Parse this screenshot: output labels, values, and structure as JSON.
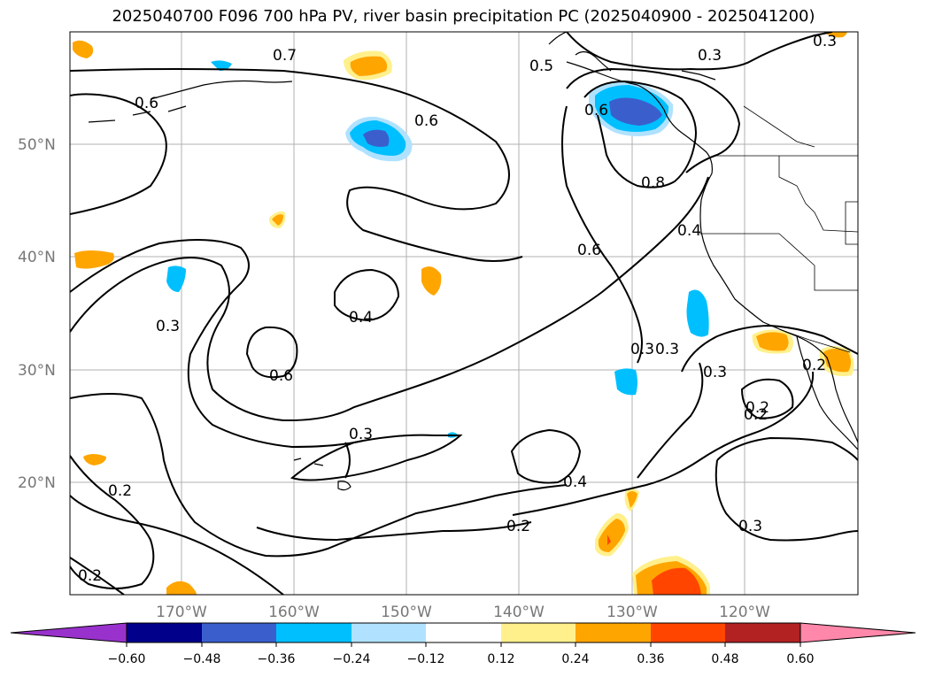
{
  "title": "2025040700 F096 700 hPa PV, river basin precipitation PC (2025040900 - 2025041200)",
  "map": {
    "lat_labels": [
      "50°N",
      "40°N",
      "30°N",
      "20°N"
    ],
    "lon_labels": [
      "170°W",
      "160°W",
      "150°W",
      "140°W",
      "130°W",
      "120°W"
    ],
    "contour_labels": [
      "0.7",
      "0.5",
      "0.3",
      "0.3",
      "0.6",
      "0.6",
      "0.6",
      "0.8",
      "0.4",
      "0.6",
      "0.4",
      "0.3",
      "0.6",
      "0.3",
      "0.3",
      "0.2",
      "0.3",
      "0.2",
      "0.4",
      "0.2",
      "0.2",
      "0.3",
      "0.2",
      "0.2",
      "0.3"
    ]
  },
  "colorbar": {
    "colors": [
      "#9932cc",
      "#00008b",
      "#3a5fcd",
      "#00bfff",
      "#b0e2ff",
      "#ffffff",
      "#fff08c",
      "#ffa500",
      "#ff4500",
      "#b22222",
      "#ff88aa"
    ],
    "ticks": [
      "−0.60",
      "−0.48",
      "−0.36",
      "−0.24",
      "−0.12",
      "0.12",
      "0.24",
      "0.36",
      "0.48",
      "0.60"
    ]
  }
}
